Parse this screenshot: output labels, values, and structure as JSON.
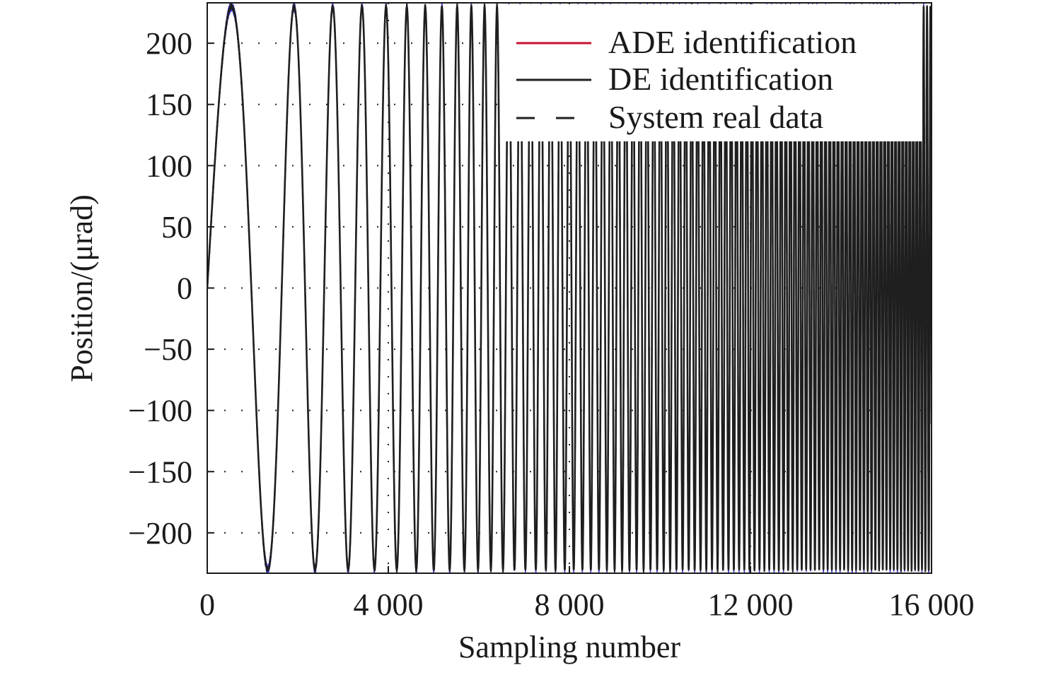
{
  "chart_data": {
    "type": "line",
    "xlabel": "Sampling number",
    "ylabel": "Position/(μrad)",
    "xlim": [
      0,
      16000
    ],
    "ylim": [
      -233,
      233
    ],
    "x_ticks": [
      0,
      4000,
      8000,
      12000,
      16000
    ],
    "x_tick_labels": [
      "0",
      "4 000",
      "8 000",
      "12 000",
      "16 000"
    ],
    "y_ticks": [
      200,
      150,
      100,
      50,
      0,
      -50,
      -100,
      -150,
      -200
    ],
    "y_tick_labels": [
      "200",
      "150",
      "100",
      "50",
      "0",
      "−50",
      "−100",
      "−150",
      "−200"
    ],
    "grid": "dotted",
    "legend_position": "top-right",
    "signal": {
      "shape": "chirp (sweep sine)",
      "amplitude": 230,
      "x_start": 0,
      "x_end": 16000,
      "samples": 16000,
      "first_peak_x": 650,
      "first_trough_x": 1570,
      "second_peak_x": 2240,
      "end_frequency_cycles_per_sample": 0.0135
    },
    "series": [
      {
        "name": "ADE identification",
        "color": "#c8102e",
        "style": "solid"
      },
      {
        "name": "DE identification",
        "color": "#1f1f1f",
        "style": "solid"
      },
      {
        "name": "System real data",
        "color": "#1f1f1f",
        "style": "dashed"
      }
    ],
    "overlay_color": "#3b3bd6"
  }
}
